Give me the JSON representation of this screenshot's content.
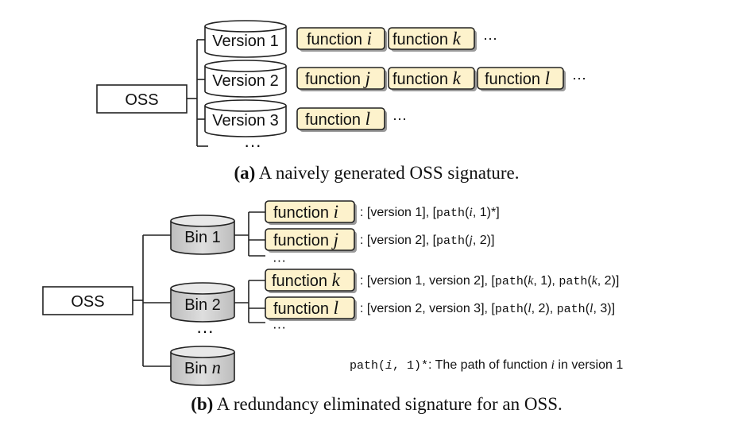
{
  "part_a": {
    "root": "OSS",
    "versions": [
      {
        "label": "Version 1",
        "functions": [
          "function ",
          "function "
        ],
        "vars": [
          "i",
          "k"
        ],
        "trail": "···"
      },
      {
        "label": "Version 2",
        "functions": [
          "function ",
          "function ",
          "function "
        ],
        "vars": [
          "j",
          "k",
          "l"
        ],
        "trail": "···"
      },
      {
        "label": "Version 3",
        "functions": [
          "function "
        ],
        "vars": [
          "l"
        ],
        "trail": "···"
      }
    ],
    "more": "···",
    "caption_tag": "(a)",
    "caption_text": " A naively generated OSS signature."
  },
  "part_b": {
    "root": "OSS",
    "bins": [
      {
        "label": "Bin 1",
        "var": ""
      },
      {
        "label": "Bin 2",
        "var": ""
      },
      {
        "label": "Bin ",
        "var": "n"
      }
    ],
    "bins_more": "···",
    "functions": [
      {
        "word": "function ",
        "var": "i",
        "entry": [
          ": [version 1], [",
          "path",
          "(",
          "i",
          ", 1)*]"
        ]
      },
      {
        "word": "function ",
        "var": "j",
        "entry": [
          ": [version 2], [",
          "path",
          "(",
          "j",
          ", 2)]"
        ]
      },
      {
        "word": "function ",
        "var": "k",
        "entry": [
          ": [version 1, version 2], [",
          "path",
          "(",
          "k",
          ", 1), ",
          "path",
          "(",
          "k",
          ", 2)]"
        ]
      },
      {
        "word": "function ",
        "var": "l",
        "entry": [
          ": [version 2, version 3], [",
          "path",
          "(",
          "l",
          ", 2), ",
          "path",
          "(",
          "l",
          ", 3)]"
        ]
      }
    ],
    "group_more": [
      "···",
      "···"
    ],
    "footnote": {
      "code_a": "path(",
      "code_var": "i",
      "code_b": ", 1)*",
      "text_a": ": The path of function ",
      "text_var": "i",
      "text_b": " in version 1"
    },
    "caption_tag": "(b)",
    "caption_text": " A redundancy eliminated signature for an OSS."
  }
}
